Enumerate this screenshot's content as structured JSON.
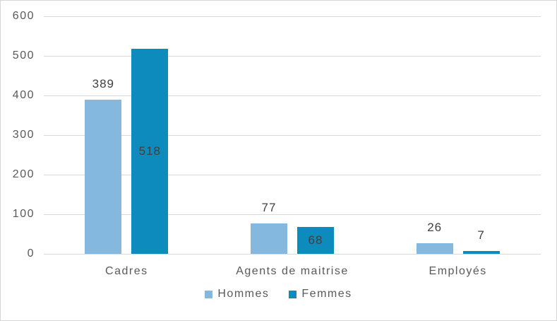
{
  "chart_data": {
    "type": "bar",
    "title": "",
    "categories": [
      "Cadres",
      "Agents de maitrise",
      "Employés"
    ],
    "series": [
      {
        "name": "Hommes",
        "color": "#84B8DE",
        "values": [
          389,
          77,
          26
        ],
        "label_position": "outside_end"
      },
      {
        "name": "Femmes",
        "color": "#0E8BBD",
        "values": [
          518,
          68,
          7
        ],
        "label_position": "center"
      }
    ],
    "data_labels": [
      {
        "category": "Cadres",
        "Hommes": 389,
        "Femmes": 518
      },
      {
        "category": "Agents de maitrise",
        "Hommes": 77,
        "Femmes": 68
      },
      {
        "category": "Employés",
        "Hommes": 26,
        "Femmes": 7
      }
    ],
    "xlabel": "",
    "ylabel": "",
    "ylim": [
      0,
      600
    ],
    "yticks": [
      0,
      100,
      200,
      300,
      400,
      500,
      600
    ],
    "grid": true,
    "legend_position": "bottom",
    "colors": {
      "axis_text": "#595959",
      "data_label_text": "#404040",
      "gridline": "#D9D9D9",
      "frame_border": "#D6D6D6",
      "background": "#FFFFFF"
    }
  }
}
